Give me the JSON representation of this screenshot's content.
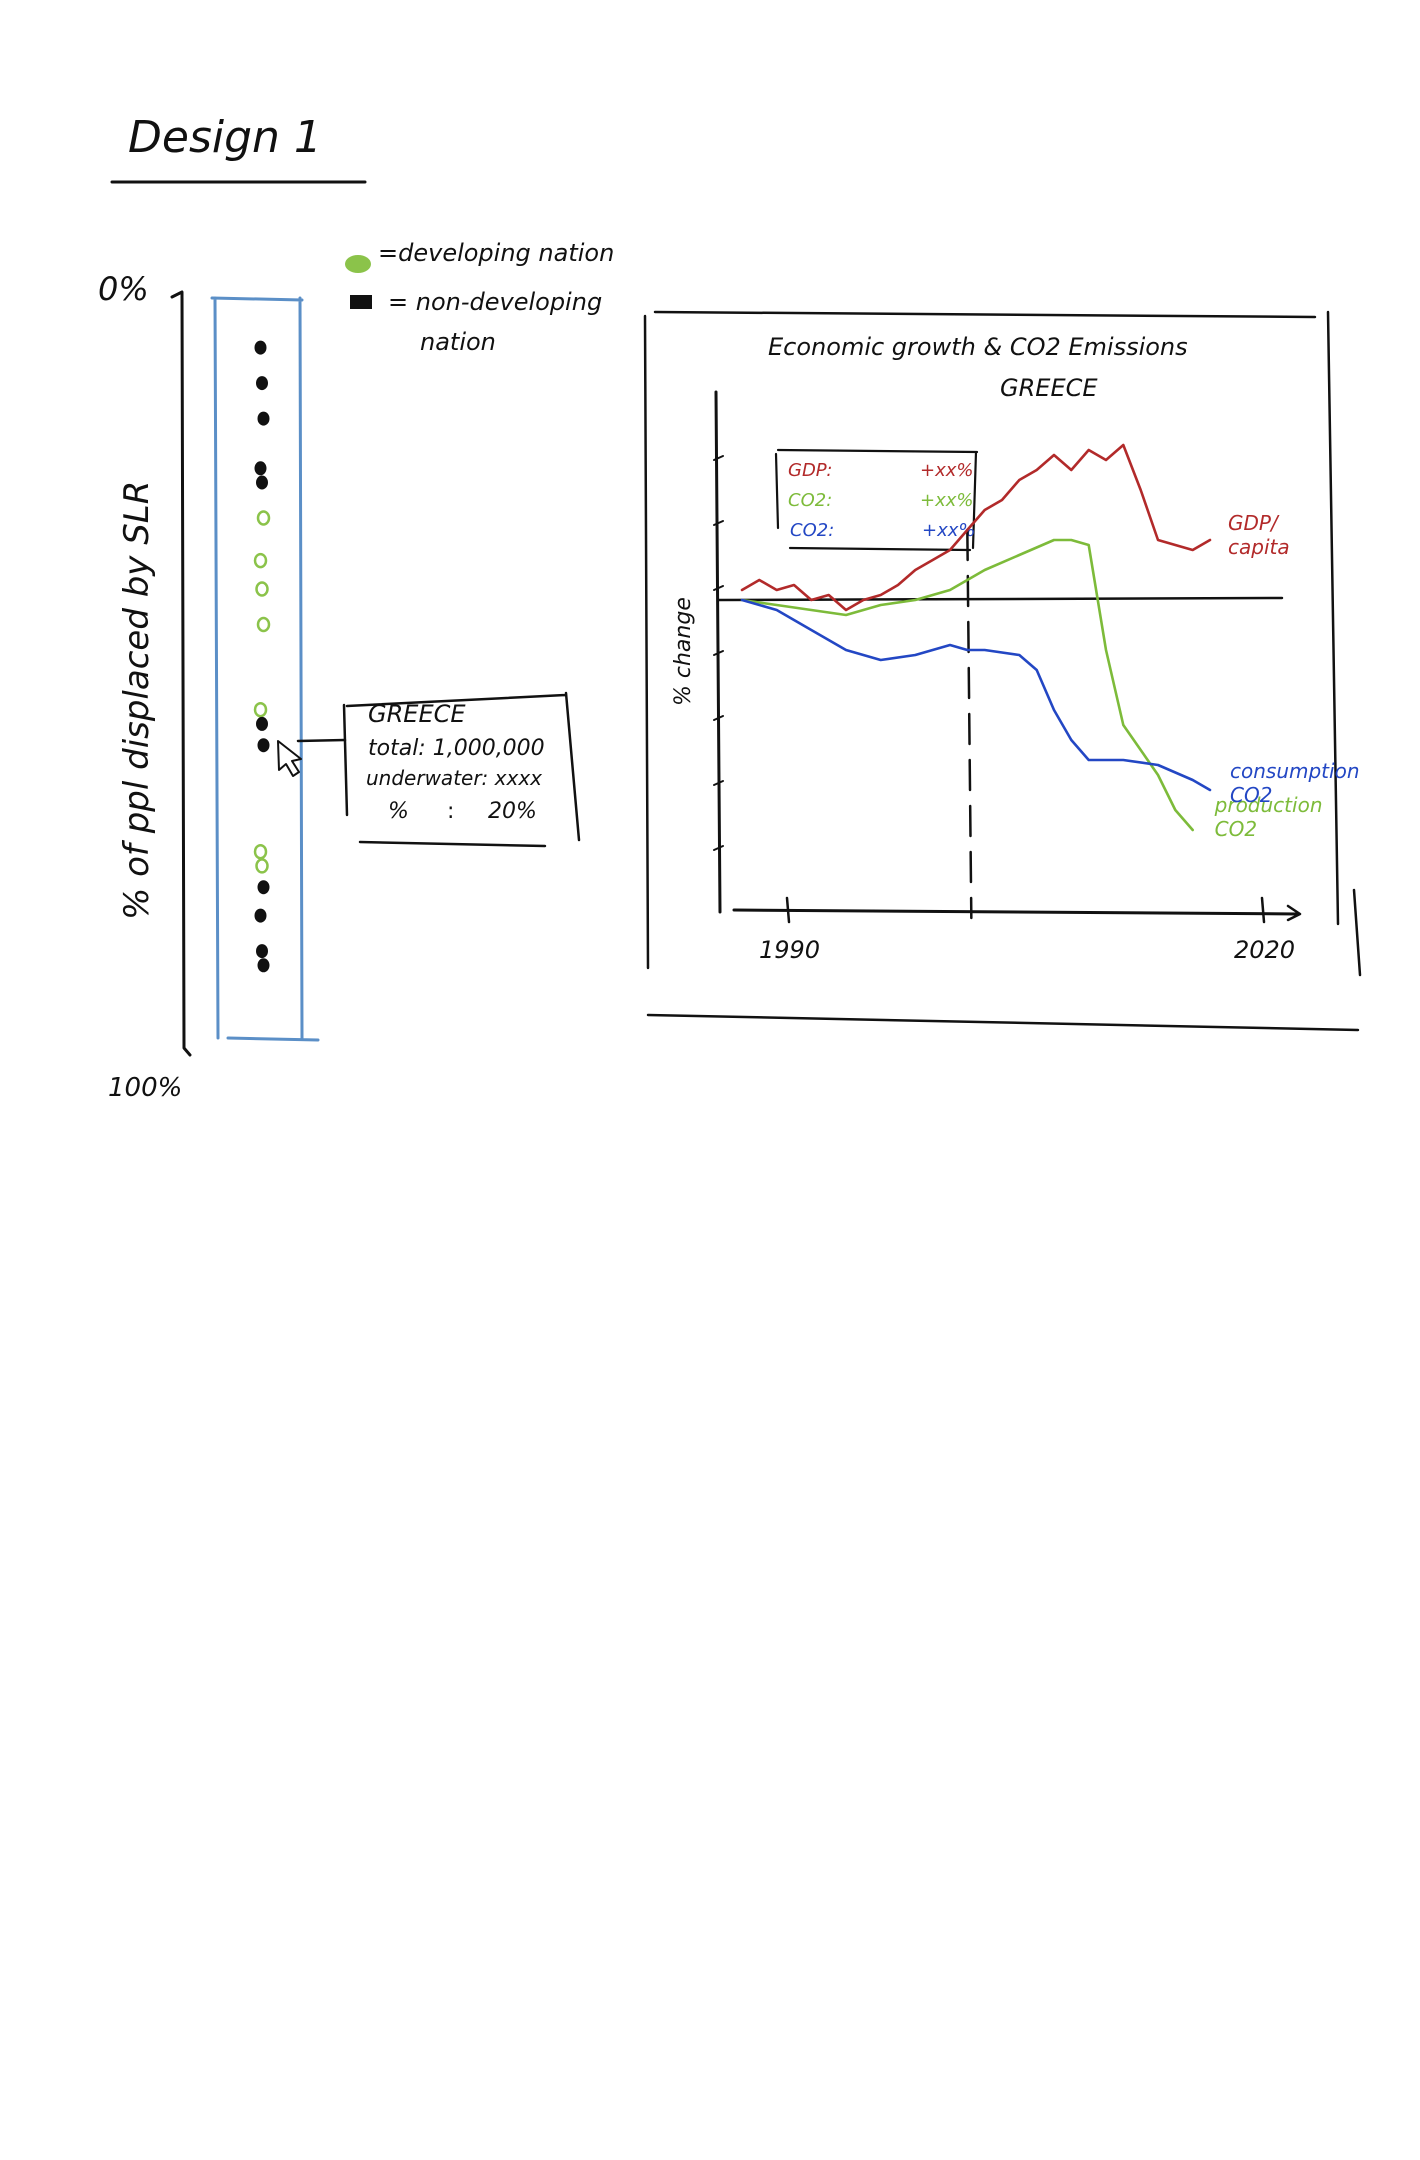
{
  "page_title": "Design 1",
  "legend": {
    "developing": "=developing nation",
    "non_developing": "= non-developing",
    "non_developing_line2": "nation",
    "developing_color": "#8bc34a",
    "non_developing_color": "#111111"
  },
  "strip": {
    "top_label": "0%",
    "bottom_label": "100%",
    "axis_label": "% of ppl displaced by SLR",
    "frame_color": "#5b8fc7",
    "dots": [
      {
        "level": 0.06,
        "kind": "non-developing"
      },
      {
        "level": 0.11,
        "kind": "non-developing"
      },
      {
        "level": 0.16,
        "kind": "non-developing"
      },
      {
        "level": 0.23,
        "kind": "non-developing"
      },
      {
        "level": 0.25,
        "kind": "non-developing"
      },
      {
        "level": 0.3,
        "kind": "developing"
      },
      {
        "level": 0.36,
        "kind": "developing"
      },
      {
        "level": 0.4,
        "kind": "developing"
      },
      {
        "level": 0.45,
        "kind": "developing"
      },
      {
        "level": 0.57,
        "kind": "developing"
      },
      {
        "level": 0.59,
        "kind": "non-developing"
      },
      {
        "level": 0.62,
        "kind": "non-developing"
      },
      {
        "level": 0.77,
        "kind": "developing"
      },
      {
        "level": 0.79,
        "kind": "developing"
      },
      {
        "level": 0.82,
        "kind": "non-developing"
      },
      {
        "level": 0.86,
        "kind": "non-developing"
      },
      {
        "level": 0.91,
        "kind": "non-developing"
      },
      {
        "level": 0.93,
        "kind": "non-developing"
      }
    ]
  },
  "tooltip": {
    "country": "GREECE",
    "total": "total: 1,000,000",
    "underwater": "underwater: xxxx",
    "percent_label": "%",
    "percent_sep": ":",
    "percent_value": "20%"
  },
  "chart_title": "Economic growth & CO2 Emissions",
  "chart_subtitle": "GREECE",
  "chart_inset": {
    "gdp_label": "GDP:",
    "gdp_value": "+xx%",
    "co2_prod_label": "CO2:",
    "co2_prod_value": "+xx%",
    "co2_cons_label": "CO2:",
    "co2_cons_value": "+xx%"
  },
  "chart_data": {
    "type": "line",
    "title": "Economic growth & CO2 Emissions",
    "subtitle": "GREECE",
    "xlabel": "",
    "ylabel": "% change",
    "x_tick_labels": [
      "1990",
      "2020"
    ],
    "xlim": [
      1990,
      2020
    ],
    "ylim": [
      -60,
      40
    ],
    "baseline": 0,
    "marker_year": 2003,
    "series": [
      {
        "name": "GDP/capita",
        "color": "#b22a2a",
        "x": [
          1990,
          1991,
          1992,
          1993,
          1994,
          1995,
          1996,
          1997,
          1998,
          1999,
          2000,
          2001,
          2002,
          2003,
          2004,
          2005,
          2006,
          2007,
          2008,
          2009,
          2010,
          2011,
          2012,
          2013,
          2014,
          2015,
          2016,
          2017
        ],
        "y": [
          2,
          4,
          2,
          3,
          0,
          1,
          -2,
          0,
          1,
          3,
          6,
          8,
          10,
          14,
          18,
          20,
          24,
          26,
          29,
          26,
          30,
          28,
          31,
          22,
          12,
          11,
          10,
          12
        ]
      },
      {
        "name": "production CO2",
        "color": "#7dbb3a",
        "x": [
          1990,
          1992,
          1994,
          1996,
          1998,
          2000,
          2002,
          2004,
          2006,
          2008,
          2009,
          2010,
          2011,
          2012,
          2013,
          2014,
          2015,
          2016
        ],
        "y": [
          0,
          -1,
          -2,
          -3,
          -1,
          0,
          2,
          6,
          9,
          12,
          12,
          11,
          -10,
          -25,
          -30,
          -35,
          -42,
          -46
        ]
      },
      {
        "name": "consumption CO2",
        "color": "#2347c4",
        "x": [
          1990,
          1992,
          1994,
          1996,
          1998,
          2000,
          2002,
          2003,
          2004,
          2006,
          2007,
          2008,
          2009,
          2010,
          2012,
          2014,
          2016,
          2017
        ],
        "y": [
          0,
          -2,
          -6,
          -10,
          -12,
          -11,
          -9,
          -10,
          -10,
          -11,
          -14,
          -22,
          -28,
          -32,
          -32,
          -33,
          -36,
          -38
        ]
      }
    ],
    "series_labels": [
      {
        "series": 0,
        "text": "GDP/ capita"
      },
      {
        "series": 1,
        "text": "production CO2"
      },
      {
        "series": 2,
        "text": "consumption CO2"
      }
    ]
  }
}
